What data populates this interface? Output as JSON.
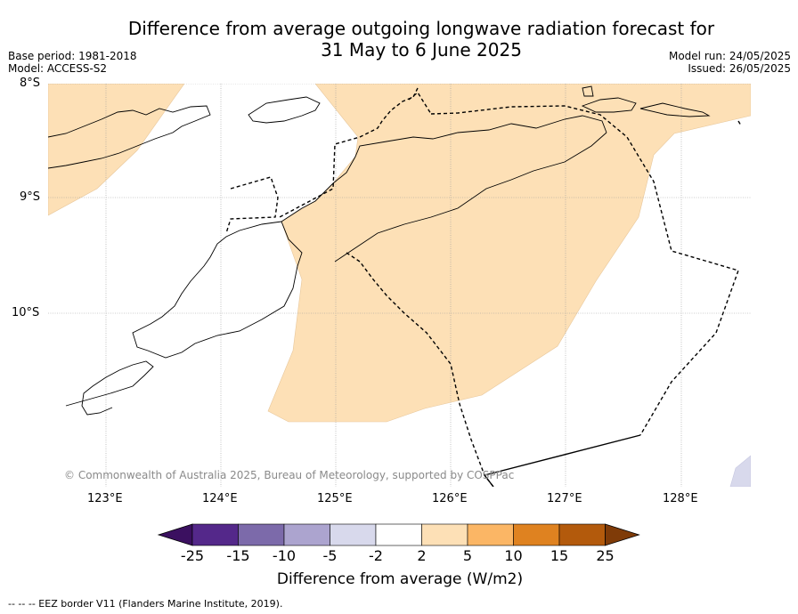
{
  "title_line1": "Difference from average outgoing longwave radiation forecast for",
  "title_line2": "31 May to 6 June 2025",
  "meta_left": [
    "Base period: 1981-2018",
    "Model: ACCESS-S2"
  ],
  "meta_right": [
    "Model run: 24/05/2025",
    "Issued: 26/05/2025"
  ],
  "lat_labels": [
    "8°S",
    "9°S",
    "10°S"
  ],
  "lon_labels": [
    "123°E",
    "124°E",
    "125°E",
    "126°E",
    "127°E",
    "128°E"
  ],
  "copyright": "© Commonwealth of Australia 2025, Bureau of Meteorology, supported by COSPPac",
  "colorbar": {
    "label": "Difference from average (W/m2)",
    "ticks": [
      "-25",
      "-15",
      "-10",
      "-5",
      "-2",
      "2",
      "5",
      "10",
      "15",
      "25"
    ],
    "colors": [
      "#3b1060",
      "#54288a",
      "#7c6aaa",
      "#aca4cf",
      "#d8d9ec",
      "#ffffff",
      "#fde0b6",
      "#fbb665",
      "#df8220",
      "#b35a0c",
      "#7f3b08"
    ]
  },
  "legend_footnote": "--  --  -- EEZ border V11 (Flanders Marine Institute, 2019).",
  "map_colors": {
    "positive_light": "#fde0b6",
    "negative_light": "#d8d9ec"
  }
}
